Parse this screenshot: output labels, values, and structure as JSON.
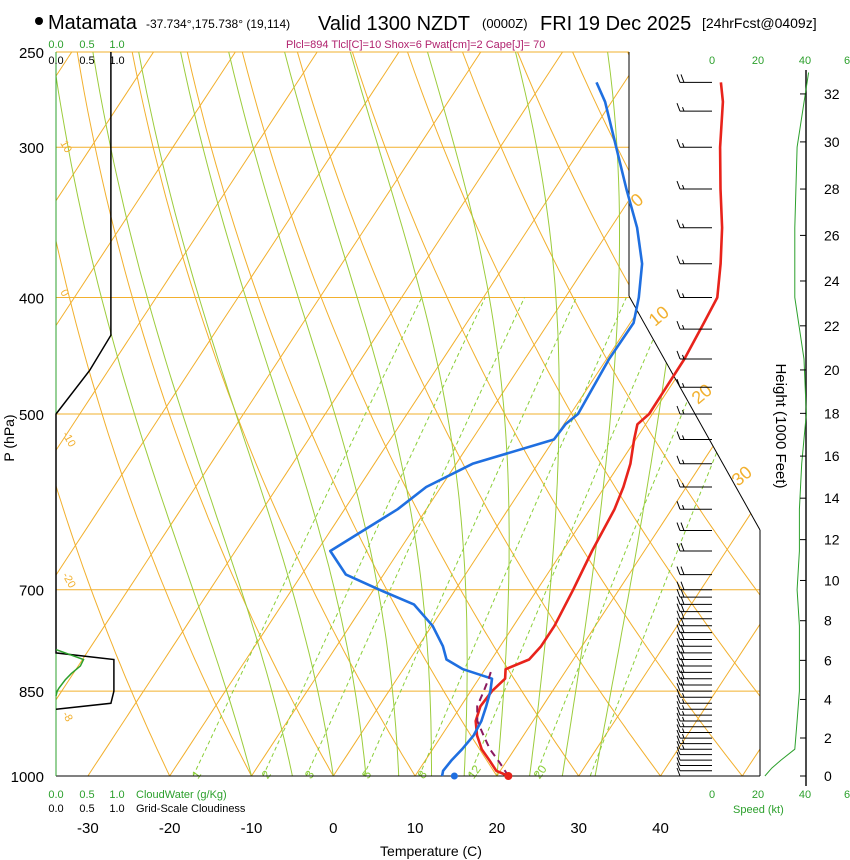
{
  "header": {
    "location": "Matamata",
    "coords": "-37.734°,175.738° (19,114)",
    "valid": "Valid 1300 NZDT",
    "utc": "(0000Z)",
    "date": "FRI 19 Dec 2025",
    "forecast": "[24hrFcst@0409z]",
    "indices": "Plcl=894 Tlcl[C]=10 Shox=6 Pwat[cm]=2 Cape[J]= 70"
  },
  "chart_data": {
    "type": "line",
    "subtype": "skew-T log-P sounding",
    "title": "Matamata Valid 1300 NZDT (0000Z) FRI 19 Dec 2025",
    "xlabel": "Temperature (C)",
    "ylabel": "P (hPa)",
    "y2label": "Height (1000 Feet)",
    "xlim": [
      -34,
      36
    ],
    "ylim": [
      1000,
      250
    ],
    "x_ticks": [
      "-30",
      "-20",
      "-10",
      "0",
      "10",
      "20",
      "30",
      "40"
    ],
    "x_tick_values": [
      -30,
      -20,
      -10,
      0,
      10,
      20,
      30,
      40
    ],
    "y_ticks": [
      "250",
      "300",
      "400",
      "500",
      "700",
      "850",
      "1000"
    ],
    "y_tick_values": [
      250,
      300,
      400,
      500,
      700,
      850,
      1000
    ],
    "height_ticks": [
      "0",
      "2",
      "4",
      "6",
      "8",
      "10",
      "12",
      "14",
      "16",
      "18",
      "20",
      "22",
      "24",
      "26",
      "28",
      "30",
      "32"
    ],
    "dry_adiabat_labels": [
      "0",
      "10",
      "20",
      "30"
    ],
    "moist_adiabat_labels": [
      "10",
      "0",
      "-10",
      "-20",
      "-8"
    ],
    "mixing_ratio_labels": [
      "1",
      "2",
      "3",
      "5",
      "8",
      "12",
      "20"
    ],
    "series": [
      {
        "name": "Temperature",
        "color": "#e8231b",
        "p": [
          1000,
          990,
          970,
          950,
          925,
          900,
          875,
          850,
          830,
          815,
          800,
          780,
          750,
          700,
          650,
          600,
          575,
          550,
          525,
          510,
          500,
          450,
          420,
          400,
          375,
          350,
          325,
          300,
          275,
          265
        ],
        "t": [
          21.4,
          19.5,
          17.8,
          16.0,
          14.3,
          13.0,
          12.4,
          12.6,
          13.2,
          12.5,
          14.6,
          15.0,
          15.0,
          14.4,
          13.6,
          13.0,
          12.3,
          11.3,
          9.8,
          9.0,
          9.6,
          9.5,
          9.0,
          8.6,
          6.3,
          3.6,
          0.3,
          -3.1,
          -6.4,
          -8.2
        ]
      },
      {
        "name": "Dewpoint",
        "color": "#1f6fe0",
        "p": [
          1000,
          990,
          970,
          950,
          925,
          900,
          875,
          850,
          830,
          815,
          800,
          780,
          750,
          720,
          700,
          680,
          650,
          600,
          575,
          550,
          525,
          510,
          500,
          450,
          420,
          400,
          375,
          350,
          325,
          300,
          275,
          265
        ],
        "t": [
          13.3,
          13.0,
          13.2,
          13.6,
          13.9,
          13.7,
          13.1,
          12.4,
          11.6,
          7.3,
          4.5,
          3.0,
          0.1,
          -3.9,
          -9.3,
          -14.6,
          -18.4,
          -13.5,
          -11.8,
          -8.0,
          0.0,
          0.2,
          0.9,
          0.3,
          0.4,
          -1.0,
          -3.3,
          -6.8,
          -11.2,
          -15.8,
          -20.8,
          -23.4
        ]
      },
      {
        "name": "Parcel",
        "color": "#8b1a5e",
        "p": [
          1000,
          975,
          950,
          925,
          900,
          875,
          850,
          830,
          815
        ],
        "t": [
          21.4,
          19.3,
          17.0,
          15.1,
          13.2,
          12.0,
          11.6,
          11.2,
          10.8
        ]
      }
    ],
    "surface_temperature": 21.4,
    "surface_dewpoint": 14.8,
    "cloudwater_axis": {
      "label": "CloudWater (g/Kg)",
      "ticks": [
        "0.0",
        "0.5",
        "1.0"
      ],
      "top_ticks": [
        "0.0",
        "0.5",
        "1.0"
      ]
    },
    "cloudiness_axis": {
      "label": "Grid-Scale Cloudiness",
      "ticks": [
        "0.0",
        "0.5",
        "1.0"
      ],
      "top_ticks": [
        "0.0",
        "0.5",
        "1.0"
      ]
    },
    "cloudiness_profile": {
      "p": [
        250,
        300,
        400,
        430,
        460,
        500,
        510,
        790,
        800,
        830,
        850,
        870,
        880
      ],
      "v": [
        0.9,
        0.9,
        0.9,
        0.9,
        0.55,
        0.0,
        0.0,
        0.0,
        0.95,
        0.95,
        0.95,
        0.9,
        0.0
      ]
    },
    "cloudwater_profile": {
      "p": [
        785,
        800,
        810,
        822,
        832,
        845,
        850,
        858
      ],
      "v": [
        0.0,
        0.45,
        0.4,
        0.25,
        0.15,
        0.05,
        0.02,
        0.0
      ]
    },
    "wind_speed_axis": {
      "label": "Speed (kt)",
      "ticks": [
        "0",
        "20",
        "40"
      ],
      "top_ticks": [
        "0",
        "20",
        "40"
      ],
      "m_ticks": [
        "6"
      ]
    },
    "wind_speed_profile": {
      "p": [
        1000,
        985,
        970,
        950,
        900,
        850,
        800,
        750,
        700,
        650,
        600,
        550,
        500,
        450,
        400,
        350,
        300,
        260
      ],
      "v": [
        23,
        26,
        30,
        36,
        37,
        38,
        38,
        38,
        37,
        38,
        38,
        39,
        41,
        40,
        36,
        36,
        37,
        42
      ]
    },
    "wind_barbs": {
      "p": [
        1000,
        990,
        980,
        970,
        960,
        950,
        940,
        930,
        920,
        910,
        900,
        890,
        880,
        870,
        860,
        850,
        840,
        830,
        820,
        810,
        800,
        790,
        780,
        770,
        760,
        750,
        740,
        730,
        720,
        710,
        700,
        680,
        650,
        625,
        600,
        575,
        550,
        525,
        500,
        475,
        450,
        425,
        400,
        375,
        350,
        325,
        300,
        280,
        265
      ],
      "kts": [
        10,
        10,
        12,
        12,
        14,
        15,
        15,
        16,
        16,
        17,
        18,
        18,
        18,
        19,
        19,
        20,
        20,
        20,
        20,
        21,
        21,
        21,
        22,
        22,
        22,
        22,
        22,
        22,
        22,
        23,
        23,
        23,
        22,
        20,
        19,
        17,
        16,
        16,
        16,
        17,
        18,
        18,
        18,
        18,
        17,
        17,
        18,
        19,
        20
      ],
      "dir": [
        260,
        262,
        263,
        265,
        266,
        267,
        268,
        269,
        270,
        271,
        272,
        273,
        274,
        274,
        275,
        275,
        276,
        276,
        277,
        277,
        278,
        278,
        279,
        279,
        280,
        280,
        280,
        281,
        281,
        281,
        282,
        282,
        283,
        283,
        284,
        284,
        285,
        285,
        285,
        286,
        286,
        286,
        287,
        287,
        287,
        288,
        288,
        288,
        289
      ]
    }
  }
}
